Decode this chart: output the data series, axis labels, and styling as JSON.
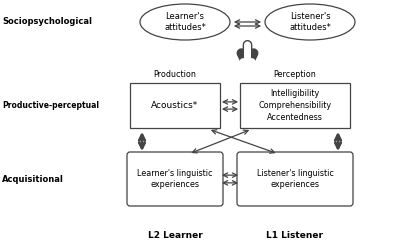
{
  "bg_color": "#ffffff",
  "text_color": "#000000",
  "box_edge_color": "#444444",
  "arrow_color": "#444444",
  "label_sociopsychological": "Sociopsychological",
  "label_productive_perceptual": "Productive-perceptual",
  "label_acquisitional": "Acquisitional",
  "label_l2": "L2 Learner",
  "label_l1": "L1 Listener",
  "label_production": "Production",
  "label_perception": "Perception",
  "ellipse1_text": "Learner's\nattitudes*",
  "ellipse2_text": "Listener's\nattitudes*",
  "box1_text": "Acoustics*",
  "box2_text": "Intelligibility\nComprehensibility\nAccentedness",
  "box3_text": "Learner's linguistic\nexperiences",
  "box4_text": "Listener's linguistic\nexperiences"
}
